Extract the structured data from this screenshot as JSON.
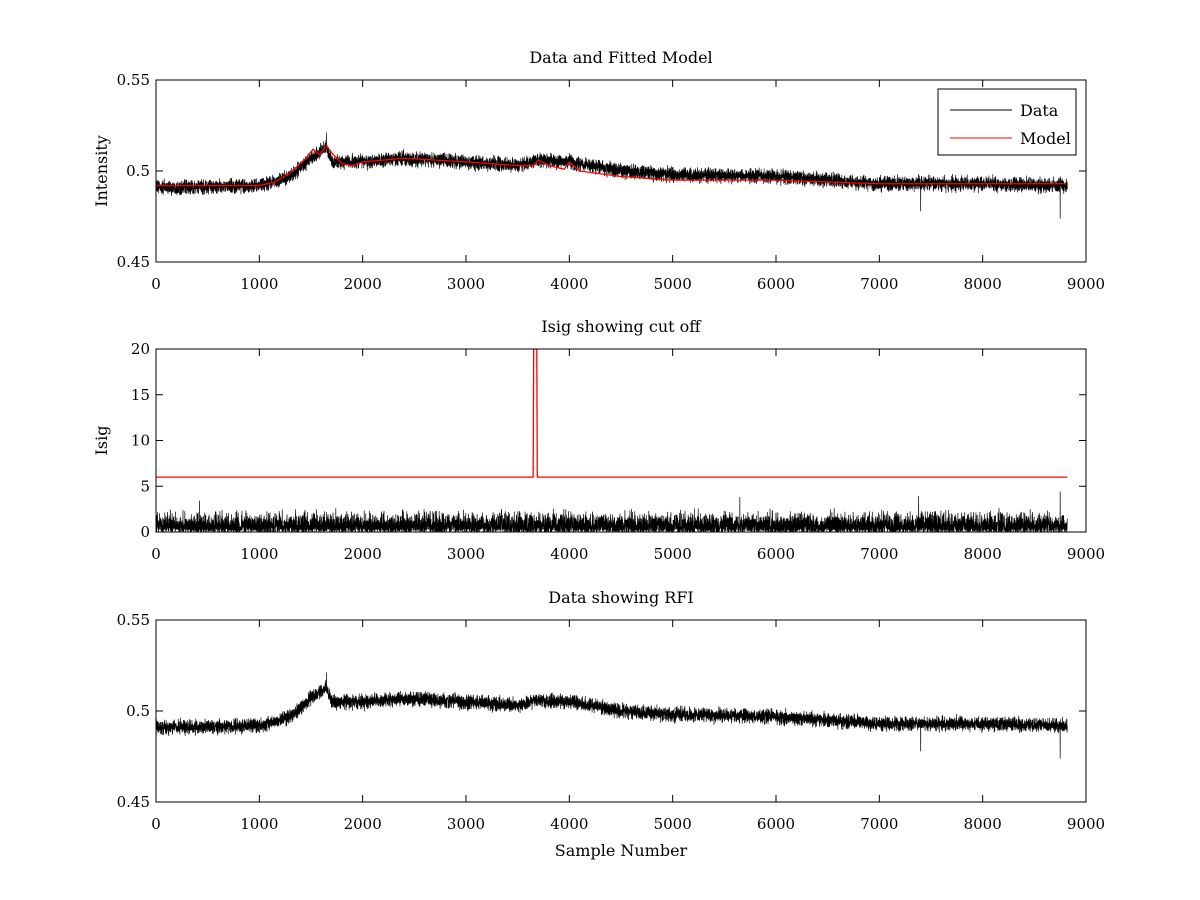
{
  "chart_data": [
    {
      "type": "line",
      "title": "Data and Fitted Model",
      "xlabel": "",
      "ylabel": "Intensity",
      "xlim": [
        0,
        9000
      ],
      "ylim": [
        0.45,
        0.55
      ],
      "xticks": [
        0,
        1000,
        2000,
        3000,
        4000,
        5000,
        6000,
        7000,
        8000,
        9000
      ],
      "xtick_labels": [
        "0",
        "1000",
        "2000",
        "3000",
        "4000",
        "5000",
        "6000",
        "7000",
        "8000",
        "9000"
      ],
      "yticks": [
        0.45,
        0.5,
        0.55
      ],
      "ytick_labels": [
        "0.45",
        "0.5",
        "0.55"
      ],
      "grid": false,
      "legend_position": "top-right",
      "n_points": 8820,
      "series": [
        {
          "name": "Data",
          "color": "#000000",
          "trend": {
            "x": [
              0,
              400,
              1000,
              1300,
              1500,
              1650,
              1700,
              2000,
              2400,
              3000,
              3500,
              3700,
              4000,
              4500,
              5000,
              6000,
              6500,
              7000,
              8000,
              8800
            ],
            "y": [
              0.491,
              0.491,
              0.492,
              0.497,
              0.507,
              0.513,
              0.505,
              0.505,
              0.507,
              0.505,
              0.503,
              0.506,
              0.505,
              0.5,
              0.498,
              0.497,
              0.495,
              0.493,
              0.493,
              0.492
            ]
          },
          "noise_amplitude": 0.0055,
          "spikes": [
            {
              "x": 1650,
              "y": 0.521
            },
            {
              "x": 7400,
              "y": 0.478
            },
            {
              "x": 8750,
              "y": 0.474
            }
          ]
        },
        {
          "name": "Model",
          "color": "#ff0000",
          "x": [
            0,
            400,
            1000,
            1150,
            1300,
            1450,
            1520,
            1580,
            1650,
            1700,
            1800,
            1900,
            2000,
            2400,
            3000,
            3500,
            3650,
            3700,
            3800,
            3950,
            4000,
            4100,
            4500,
            5000,
            6000,
            6500,
            7000,
            8000,
            8500,
            8800
          ],
          "y": [
            0.492,
            0.492,
            0.492,
            0.494,
            0.499,
            0.507,
            0.512,
            0.509,
            0.514,
            0.51,
            0.504,
            0.503,
            0.505,
            0.507,
            0.505,
            0.503,
            0.503,
            0.506,
            0.503,
            0.501,
            0.505,
            0.5,
            0.497,
            0.495,
            0.495,
            0.494,
            0.493,
            0.493,
            0.493,
            0.493
          ]
        }
      ]
    },
    {
      "type": "line",
      "title": "Isig showing cut off",
      "xlabel": "",
      "ylabel": "Isig",
      "xlim": [
        0,
        9000
      ],
      "ylim": [
        0,
        20
      ],
      "xticks": [
        0,
        1000,
        2000,
        3000,
        4000,
        5000,
        6000,
        7000,
        8000,
        9000
      ],
      "xtick_labels": [
        "0",
        "1000",
        "2000",
        "3000",
        "4000",
        "5000",
        "6000",
        "7000",
        "8000",
        "9000"
      ],
      "yticks": [
        0,
        5,
        10,
        15,
        20
      ],
      "ytick_labels": [
        "0",
        "5",
        "10",
        "15",
        "20"
      ],
      "grid": false,
      "n_points": 8820,
      "series": [
        {
          "name": "Isig",
          "color": "#000000",
          "typical_max": 2.5,
          "spikes": [
            {
              "x": 420,
              "y": 3.4
            },
            {
              "x": 5650,
              "y": 3.8
            },
            {
              "x": 7380,
              "y": 3.9
            },
            {
              "x": 8750,
              "y": 4.4
            }
          ]
        },
        {
          "name": "Cut off",
          "color": "#ff0000",
          "x": [
            0,
            3650,
            3655,
            3685,
            3690,
            8820
          ],
          "y": [
            6,
            6,
            20,
            20,
            6,
            6
          ]
        }
      ]
    },
    {
      "type": "line",
      "title": "Data showing RFI",
      "xlabel": "Sample Number",
      "ylabel": "",
      "xlim": [
        0,
        9000
      ],
      "ylim": [
        0.45,
        0.55
      ],
      "xticks": [
        0,
        1000,
        2000,
        3000,
        4000,
        5000,
        6000,
        7000,
        8000,
        9000
      ],
      "xtick_labels": [
        "0",
        "1000",
        "2000",
        "3000",
        "4000",
        "5000",
        "6000",
        "7000",
        "8000",
        "9000"
      ],
      "yticks": [
        0.45,
        0.5,
        0.55
      ],
      "ytick_labels": [
        "0.45",
        "0.5",
        "0.55"
      ],
      "grid": false,
      "n_points": 8820,
      "series": [
        {
          "name": "Data",
          "color": "#000000",
          "trend": {
            "x": [
              0,
              400,
              1000,
              1300,
              1500,
              1650,
              1700,
              2000,
              2400,
              3000,
              3500,
              3700,
              4000,
              4500,
              5000,
              6000,
              6500,
              7000,
              8000,
              8800
            ],
            "y": [
              0.491,
              0.491,
              0.492,
              0.497,
              0.507,
              0.513,
              0.505,
              0.505,
              0.507,
              0.505,
              0.503,
              0.506,
              0.505,
              0.5,
              0.498,
              0.497,
              0.495,
              0.493,
              0.493,
              0.492
            ]
          },
          "noise_amplitude": 0.0055,
          "spikes": [
            {
              "x": 1650,
              "y": 0.521
            },
            {
              "x": 7400,
              "y": 0.478
            },
            {
              "x": 8750,
              "y": 0.474
            }
          ]
        }
      ]
    }
  ]
}
